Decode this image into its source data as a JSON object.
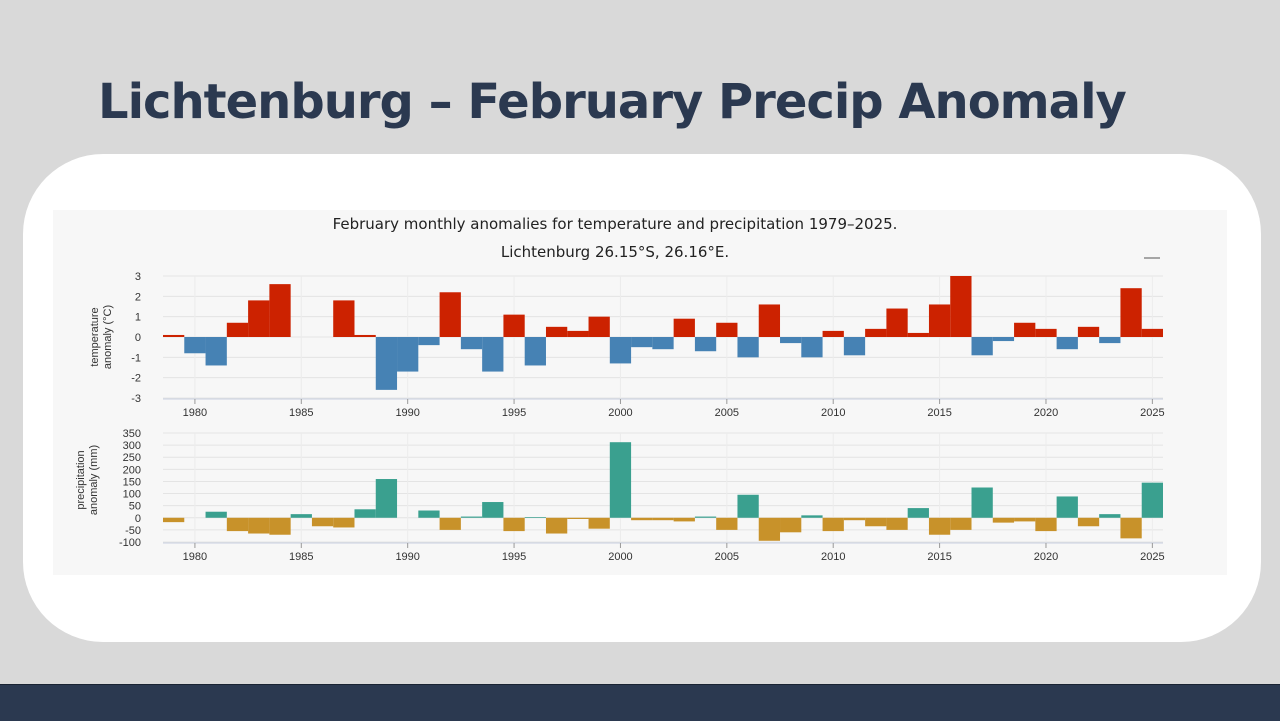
{
  "slide": {
    "title": "Lichtenburg – February Precip Anomaly"
  },
  "colors": {
    "background": "#d9d9d9",
    "title": "#2b3950",
    "footer": "#2b3950",
    "temp_positive": "#cc2200",
    "temp_negative": "#4682b4",
    "precip_positive": "#3aa08f",
    "precip_negative": "#c8922a"
  },
  "chart_data": {
    "type": "bar",
    "title": "February monthly anomalies for temperature and precipitation 1979–2025.",
    "subtitle": "Lichtenburg 26.15°S, 26.16°E.",
    "x": [
      1979,
      1980,
      1981,
      1982,
      1983,
      1984,
      1985,
      1986,
      1987,
      1988,
      1989,
      1990,
      1991,
      1992,
      1993,
      1994,
      1995,
      1996,
      1997,
      1998,
      1999,
      2000,
      2001,
      2002,
      2003,
      2004,
      2005,
      2006,
      2007,
      2008,
      2009,
      2010,
      2011,
      2012,
      2013,
      2014,
      2015,
      2016,
      2017,
      2018,
      2019,
      2020,
      2021,
      2022,
      2023,
      2024,
      2025
    ],
    "x_ticks": [
      1980,
      1985,
      1990,
      1995,
      2000,
      2005,
      2010,
      2015,
      2020,
      2025
    ],
    "xlim": [
      1978.5,
      2025.5
    ],
    "grid": true,
    "panels": [
      {
        "name": "temperature",
        "ylabel_line1": "temperature",
        "ylabel_line2": "anomaly (°C)",
        "ylim": [
          -3,
          3
        ],
        "y_ticks": [
          -3,
          -2,
          -1,
          0,
          1,
          2,
          3
        ],
        "values": [
          0.1,
          -0.8,
          -1.4,
          0.7,
          1.8,
          2.6,
          0,
          0,
          1.8,
          0.1,
          -2.6,
          -1.7,
          -0.4,
          2.2,
          -0.6,
          -1.7,
          1.1,
          -1.4,
          0.5,
          0.3,
          1.0,
          -1.3,
          -0.5,
          -0.6,
          0.9,
          -0.7,
          0.7,
          -1.0,
          1.6,
          -0.3,
          -1.0,
          0.3,
          -0.9,
          0.4,
          1.4,
          0.2,
          1.6,
          3.0,
          -0.9,
          -0.2,
          0.7,
          0.4,
          -0.6,
          0.5,
          -0.3,
          2.4,
          0.4
        ]
      },
      {
        "name": "precipitation",
        "ylabel_line1": "precipitation",
        "ylabel_line2": "anomaly (mm)",
        "ylim": [
          -100,
          350
        ],
        "y_ticks": [
          -100,
          -50,
          0,
          50,
          100,
          150,
          200,
          250,
          300,
          350
        ],
        "values": [
          -18,
          0,
          25,
          -55,
          -65,
          -70,
          15,
          -35,
          -40,
          35,
          160,
          0,
          30,
          -50,
          5,
          65,
          -55,
          3,
          -65,
          -5,
          -45,
          312,
          -10,
          -10,
          -15,
          5,
          -50,
          95,
          -95,
          -60,
          10,
          -55,
          -10,
          -35,
          -50,
          40,
          -70,
          -50,
          125,
          -20,
          -15,
          -55,
          88,
          -35,
          15,
          -85,
          145
        ]
      }
    ]
  }
}
